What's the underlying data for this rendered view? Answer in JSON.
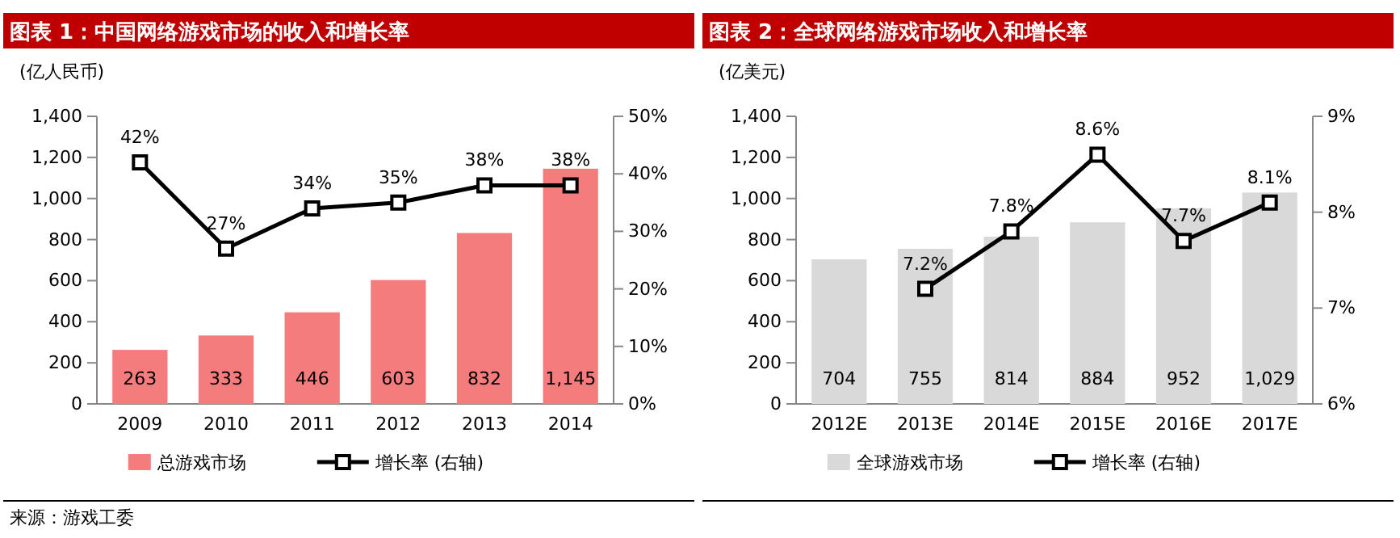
{
  "chart_data": [
    {
      "type": "bar",
      "title": "图表 1：中国网络游戏市场的收入和增长率",
      "ylabel": "(亿人民币)",
      "categories": [
        "2009",
        "2010",
        "2011",
        "2012",
        "2013",
        "2014"
      ],
      "series": [
        {
          "name": "总游戏市场",
          "color": "#f47c7c",
          "values": [
            263,
            333,
            446,
            603,
            832,
            1145
          ],
          "value_labels": [
            "263",
            "333",
            "446",
            "603",
            "832",
            "1,145"
          ]
        },
        {
          "name": "增长率 (右轴)",
          "type": "line",
          "axis": "y2",
          "color": "#000000",
          "values": [
            42,
            27,
            34,
            35,
            38,
            38
          ],
          "value_labels": [
            "42%",
            "27%",
            "34%",
            "35%",
            "38%",
            "38%"
          ]
        }
      ],
      "ylim": [
        0,
        1400
      ],
      "yticks": [
        0,
        200,
        400,
        600,
        800,
        {
          "value": 1000,
          "label": "1,000"
        },
        {
          "value": 1200,
          "label": "1,200"
        },
        {
          "value": 1400,
          "label": "1,400"
        }
      ],
      "y2lim": [
        0,
        50
      ],
      "y2ticks": [
        {
          "value": 0,
          "label": "0%"
        },
        {
          "value": 10,
          "label": "10%"
        },
        {
          "value": 20,
          "label": "20%"
        },
        {
          "value": 30,
          "label": "30%"
        },
        {
          "value": 40,
          "label": "40%"
        },
        {
          "value": 50,
          "label": "50%"
        }
      ],
      "marker": "square",
      "legend": "bottom",
      "grid": false,
      "annotations": [
        "来源：游戏工委"
      ]
    },
    {
      "type": "bar",
      "title": "图表 2：全球网络游戏市场收入和增长率",
      "ylabel": "(亿美元)",
      "categories": [
        "2012E",
        "2013E",
        "2014E",
        "2015E",
        "2016E",
        "2017E"
      ],
      "series": [
        {
          "name": "全球游戏市场",
          "color": "#d9d9d9",
          "values": [
            704,
            755,
            814,
            884,
            952,
            1029
          ],
          "value_labels": [
            "704",
            "755",
            "814",
            "884",
            "952",
            "1,029"
          ]
        },
        {
          "name": "增长率 (右轴)",
          "type": "line",
          "axis": "y2",
          "color": "#000000",
          "values": [
            null,
            7.2,
            7.8,
            8.6,
            7.7,
            8.1
          ],
          "value_labels": [
            null,
            "7.2%",
            "7.8%",
            "8.6%",
            "7.7%",
            "8.1%"
          ]
        }
      ],
      "ylim": [
        0,
        1400
      ],
      "yticks": [
        0,
        200,
        400,
        600,
        800,
        {
          "value": 1000,
          "label": "1,000"
        },
        {
          "value": 1200,
          "label": "1,200"
        },
        {
          "value": 1400,
          "label": "1,400"
        }
      ],
      "y2lim": [
        6,
        9
      ],
      "y2ticks": [
        {
          "value": 6,
          "label": "6%"
        },
        {
          "value": 7,
          "label": "7%"
        },
        {
          "value": 8,
          "label": "8%"
        },
        {
          "value": 9,
          "label": "9%"
        }
      ],
      "marker": "square",
      "legend": "bottom",
      "grid": false
    }
  ]
}
